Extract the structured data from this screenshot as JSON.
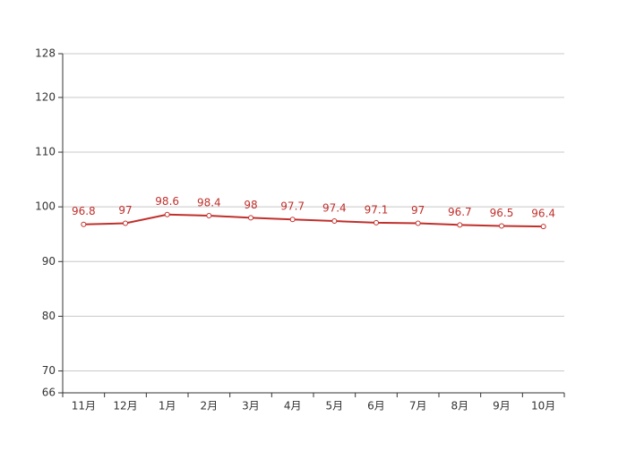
{
  "chart_data": {
    "type": "line",
    "categories": [
      "11月",
      "12月",
      "1月",
      "2月",
      "3月",
      "4月",
      "5月",
      "6月",
      "7月",
      "8月",
      "9月",
      "10月"
    ],
    "series": [
      {
        "color": "#c0302c",
        "values": [
          96.8,
          97,
          98.6,
          98.4,
          98,
          97.7,
          97.4,
          97.1,
          97,
          96.7,
          96.5,
          96.4
        ]
      }
    ],
    "ylim": [
      66,
      128
    ],
    "yticks": [
      66,
      70,
      80,
      90,
      100,
      110,
      120,
      128
    ],
    "grid": true
  }
}
